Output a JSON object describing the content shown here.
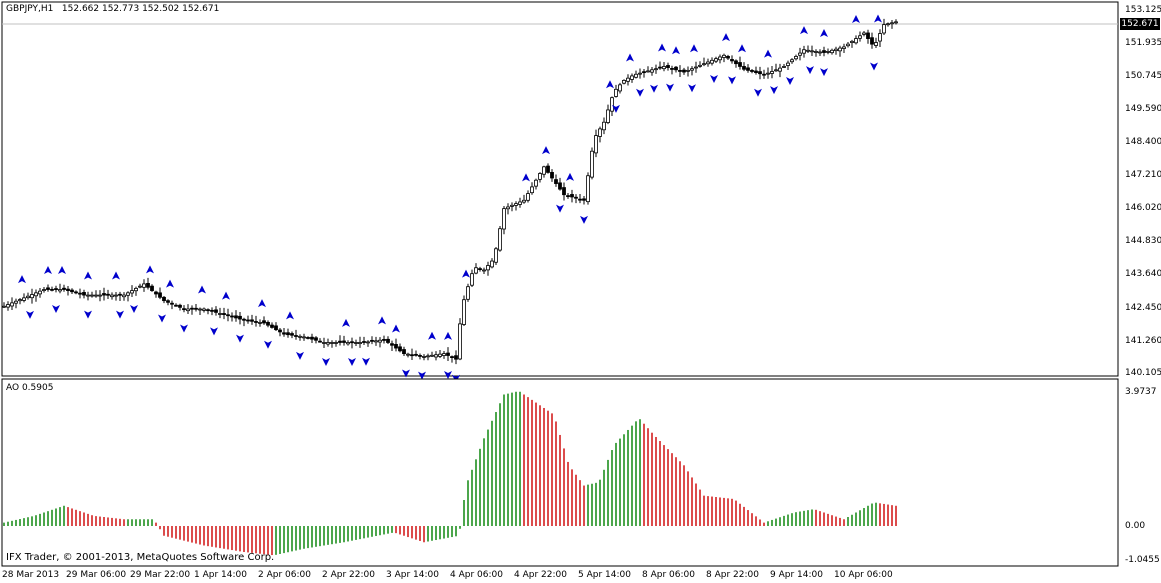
{
  "main_panel": {
    "symbol": "GBPJPY,H1",
    "ohlc": "152.662 152.773 152.502 152.671",
    "current_price": "152.671",
    "price_ticks": [
      "153.125",
      "151.935",
      "150.745",
      "149.590",
      "148.400",
      "147.210",
      "146.020",
      "144.830",
      "143.640",
      "142.450",
      "141.260",
      "140.105"
    ]
  },
  "sub_panel": {
    "indicator": "AO 0.5905",
    "ticks": [
      "3.9737",
      "0.00",
      "-1.0455"
    ]
  },
  "copyright": "IFX Trader, © 2001-2013, MetaQuotes Software Corp.",
  "time_ticks": [
    "28 Mar 2013",
    "29 Mar 06:00",
    "29 Mar 22:00",
    "1 Apr 14:00",
    "2 Apr 06:00",
    "2 Apr 22:00",
    "3 Apr 14:00",
    "4 Apr 06:00",
    "4 Apr 22:00",
    "5 Apr 14:00",
    "8 Apr 06:00",
    "8 Apr 22:00",
    "9 Apr 14:00",
    "10 Apr 06:00"
  ],
  "colors": {
    "candle": "#000000",
    "fractal": "#0000cc",
    "ao_up": "#008000",
    "ao_down": "#cc0000",
    "grid_line": "#c0c0c0"
  },
  "chart_data": {
    "type": "candlestick",
    "symbol": "GBPJPY",
    "timeframe": "H1",
    "y_range": [
      140.105,
      153.125
    ],
    "close_path": [
      [
        0,
        142.5
      ],
      [
        20,
        142.8
      ],
      [
        40,
        143.1
      ],
      [
        60,
        143.1
      ],
      [
        80,
        142.9
      ],
      [
        100,
        142.9
      ],
      [
        120,
        142.9
      ],
      [
        140,
        143.3
      ],
      [
        160,
        142.7
      ],
      [
        180,
        142.4
      ],
      [
        200,
        142.4
      ],
      [
        220,
        142.2
      ],
      [
        240,
        142.0
      ],
      [
        260,
        141.9
      ],
      [
        280,
        141.5
      ],
      [
        300,
        141.4
      ],
      [
        320,
        141.2
      ],
      [
        340,
        141.2
      ],
      [
        360,
        141.2
      ],
      [
        380,
        141.3
      ],
      [
        400,
        140.8
      ],
      [
        420,
        140.7
      ],
      [
        440,
        140.8
      ],
      [
        452,
        140.6
      ],
      [
        458,
        142.5
      ],
      [
        470,
        143.9
      ],
      [
        480,
        143.8
      ],
      [
        490,
        144.2
      ],
      [
        500,
        146.0
      ],
      [
        520,
        146.3
      ],
      [
        540,
        147.5
      ],
      [
        560,
        146.5
      ],
      [
        580,
        146.3
      ],
      [
        590,
        148.5
      ],
      [
        600,
        149.1
      ],
      [
        610,
        150.2
      ],
      [
        620,
        150.6
      ],
      [
        630,
        150.8
      ],
      [
        660,
        151.1
      ],
      [
        680,
        150.9
      ],
      [
        700,
        151.2
      ],
      [
        720,
        151.5
      ],
      [
        740,
        151.0
      ],
      [
        760,
        150.8
      ],
      [
        780,
        151.1
      ],
      [
        800,
        151.7
      ],
      [
        820,
        151.6
      ],
      [
        840,
        151.8
      ],
      [
        860,
        152.3
      ],
      [
        870,
        151.8
      ],
      [
        880,
        152.6
      ],
      [
        892,
        152.7
      ]
    ],
    "ao_histogram": {
      "labels_shown": [
        "3.9737",
        "0.00",
        "-1.0455"
      ],
      "current_value": 0.5905,
      "profile": [
        [
          0,
          0.1
        ],
        [
          30,
          0.3
        ],
        [
          60,
          0.6
        ],
        [
          90,
          0.3
        ],
        [
          120,
          0.2
        ],
        [
          150,
          0.2
        ],
        [
          160,
          -0.3
        ],
        [
          200,
          -0.6
        ],
        [
          240,
          -0.8
        ],
        [
          270,
          -0.9
        ],
        [
          300,
          -0.7
        ],
        [
          340,
          -0.5
        ],
        [
          390,
          -0.2
        ],
        [
          420,
          -0.5
        ],
        [
          455,
          -0.3
        ],
        [
          462,
          1.2
        ],
        [
          480,
          2.6
        ],
        [
          500,
          3.9
        ],
        [
          515,
          4.0
        ],
        [
          530,
          3.7
        ],
        [
          550,
          3.3
        ],
        [
          565,
          1.8
        ],
        [
          580,
          1.2
        ],
        [
          595,
          1.3
        ],
        [
          610,
          2.4
        ],
        [
          635,
          3.2
        ],
        [
          650,
          2.7
        ],
        [
          680,
          1.8
        ],
        [
          700,
          0.9
        ],
        [
          730,
          0.8
        ],
        [
          760,
          0.1
        ],
        [
          790,
          0.4
        ],
        [
          810,
          0.5
        ],
        [
          840,
          0.2
        ],
        [
          870,
          0.7
        ],
        [
          892,
          0.6
        ]
      ]
    },
    "fractals_up_x": [
      18,
      44,
      58,
      84,
      112,
      146,
      166,
      198,
      222,
      258,
      286,
      342,
      378,
      392,
      428,
      444,
      462,
      522,
      542,
      566,
      606,
      626,
      658,
      672,
      690,
      722,
      738,
      764,
      800,
      820,
      852,
      874
    ],
    "fractals_down_x": [
      26,
      52,
      84,
      116,
      130,
      158,
      180,
      210,
      236,
      264,
      296,
      322,
      348,
      362,
      402,
      418,
      444,
      452,
      556,
      580,
      612,
      636,
      650,
      666,
      688,
      710,
      728,
      754,
      770,
      786,
      806,
      820,
      870
    ]
  }
}
